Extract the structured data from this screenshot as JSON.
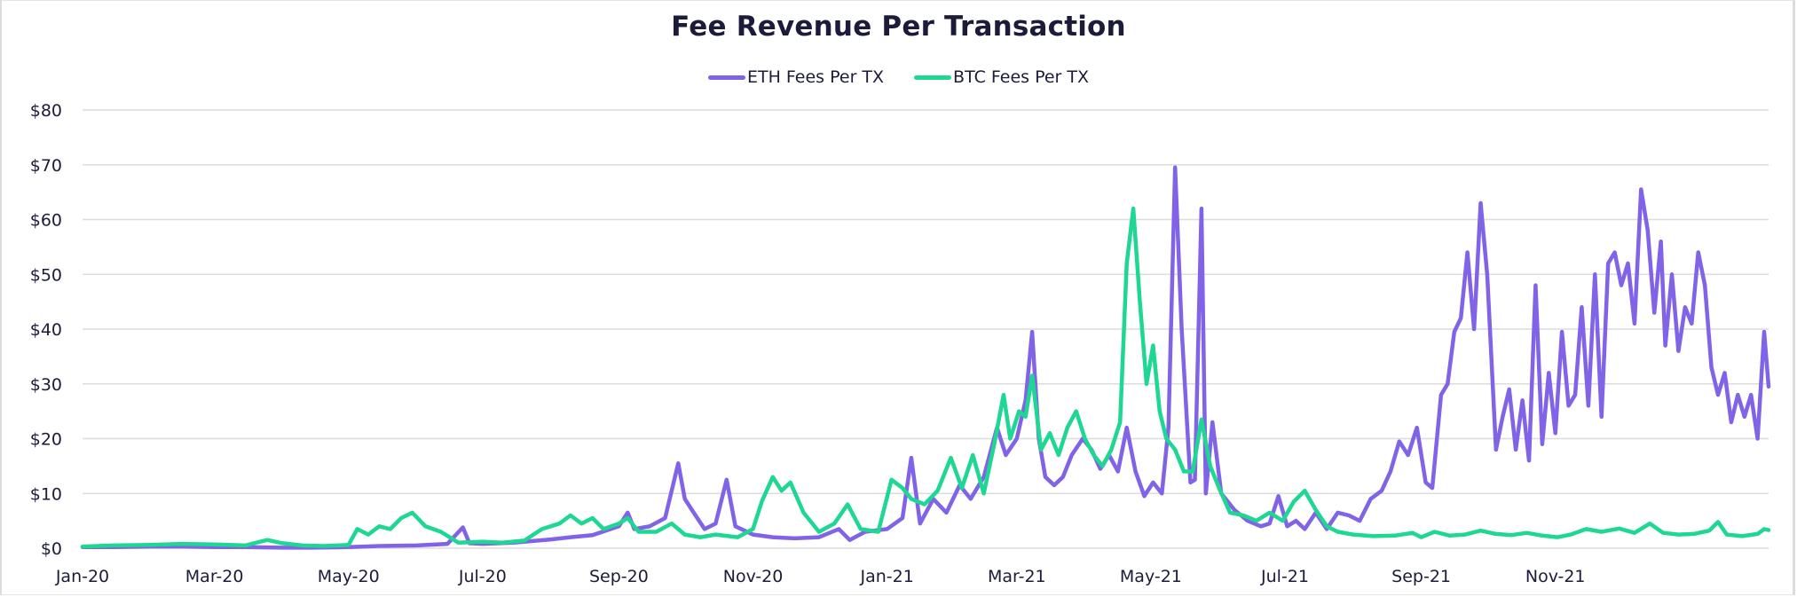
{
  "chart_data": {
    "type": "line",
    "title": "Fee Revenue Per Transaction",
    "xlabel": "",
    "ylabel": "",
    "ylim": [
      0,
      80
    ],
    "y_ticks": [
      0,
      10,
      20,
      30,
      40,
      50,
      60,
      70,
      80
    ],
    "y_tick_labels": [
      "$0",
      "$10",
      "$20",
      "$30",
      "$40",
      "$50",
      "$60",
      "$70",
      "$80"
    ],
    "x_range": [
      "2020-01-01",
      "2021-12-31"
    ],
    "x_ticks": [
      "2020-01-01",
      "2020-03-01",
      "2020-05-01",
      "2020-07-01",
      "2020-09-01",
      "2020-11-01",
      "2021-01-01",
      "2021-03-01",
      "2021-05-01",
      "2021-07-01",
      "2021-09-01",
      "2021-11-01"
    ],
    "x_tick_labels": [
      "Jan-20",
      "Mar-20",
      "May-20",
      "Jul-20",
      "Sep-20",
      "Nov-20",
      "Jan-21",
      "Mar-21",
      "May-21",
      "Jul-21",
      "Sep-21",
      "Nov-21"
    ],
    "grid": true,
    "legend_position": "top-center",
    "series": [
      {
        "name": "ETH Fees Per TX",
        "color": "#8163e8",
        "points": [
          [
            "2020-01-01",
            0.2
          ],
          [
            "2020-01-15",
            0.2
          ],
          [
            "2020-02-01",
            0.3
          ],
          [
            "2020-02-15",
            0.3
          ],
          [
            "2020-03-01",
            0.2
          ],
          [
            "2020-03-15",
            0.2
          ],
          [
            "2020-04-01",
            0.1
          ],
          [
            "2020-04-15",
            0.1
          ],
          [
            "2020-05-01",
            0.2
          ],
          [
            "2020-05-15",
            0.4
          ],
          [
            "2020-06-01",
            0.5
          ],
          [
            "2020-06-15",
            0.8
          ],
          [
            "2020-06-22",
            3.8
          ],
          [
            "2020-06-25",
            0.9
          ],
          [
            "2020-07-01",
            0.8
          ],
          [
            "2020-07-15",
            1.0
          ],
          [
            "2020-08-01",
            1.6
          ],
          [
            "2020-08-10",
            2.0
          ],
          [
            "2020-08-20",
            2.4
          ],
          [
            "2020-09-01",
            4.0
          ],
          [
            "2020-09-05",
            6.5
          ],
          [
            "2020-09-08",
            3.5
          ],
          [
            "2020-09-15",
            4.0
          ],
          [
            "2020-09-22",
            5.5
          ],
          [
            "2020-09-28",
            15.5
          ],
          [
            "2020-10-01",
            9.0
          ],
          [
            "2020-10-05",
            6.5
          ],
          [
            "2020-10-10",
            3.5
          ],
          [
            "2020-10-15",
            4.5
          ],
          [
            "2020-10-20",
            12.5
          ],
          [
            "2020-10-24",
            4.0
          ],
          [
            "2020-11-01",
            2.5
          ],
          [
            "2020-11-10",
            2.0
          ],
          [
            "2020-11-20",
            1.8
          ],
          [
            "2020-12-01",
            2.0
          ],
          [
            "2020-12-10",
            3.5
          ],
          [
            "2020-12-15",
            1.5
          ],
          [
            "2020-12-22",
            3.0
          ],
          [
            "2021-01-01",
            3.5
          ],
          [
            "2021-01-08",
            5.5
          ],
          [
            "2021-01-12",
            16.5
          ],
          [
            "2021-01-16",
            4.5
          ],
          [
            "2021-01-22",
            9.0
          ],
          [
            "2021-01-28",
            6.5
          ],
          [
            "2021-02-03",
            11.5
          ],
          [
            "2021-02-08",
            9.0
          ],
          [
            "2021-02-14",
            13.0
          ],
          [
            "2021-02-20",
            22.0
          ],
          [
            "2021-02-24",
            17.0
          ],
          [
            "2021-03-01",
            20.0
          ],
          [
            "2021-03-05",
            27.0
          ],
          [
            "2021-03-08",
            39.5
          ],
          [
            "2021-03-11",
            20.0
          ],
          [
            "2021-03-14",
            13.0
          ],
          [
            "2021-03-18",
            11.5
          ],
          [
            "2021-03-22",
            13.0
          ],
          [
            "2021-03-26",
            17.0
          ],
          [
            "2021-03-31",
            20.0
          ],
          [
            "2021-04-04",
            18.0
          ],
          [
            "2021-04-08",
            14.5
          ],
          [
            "2021-04-12",
            17.0
          ],
          [
            "2021-04-16",
            14.0
          ],
          [
            "2021-04-20",
            22.0
          ],
          [
            "2021-04-24",
            14.0
          ],
          [
            "2021-04-28",
            9.5
          ],
          [
            "2021-05-02",
            12.0
          ],
          [
            "2021-05-06",
            10.0
          ],
          [
            "2021-05-09",
            22.0
          ],
          [
            "2021-05-12",
            69.5
          ],
          [
            "2021-05-15",
            40.0
          ],
          [
            "2021-05-19",
            12.0
          ],
          [
            "2021-05-21",
            12.5
          ],
          [
            "2021-05-24",
            62.0
          ],
          [
            "2021-05-26",
            10.0
          ],
          [
            "2021-05-29",
            23.0
          ],
          [
            "2021-06-02",
            10.0
          ],
          [
            "2021-06-08",
            7.0
          ],
          [
            "2021-06-14",
            5.0
          ],
          [
            "2021-06-20",
            4.0
          ],
          [
            "2021-06-24",
            4.5
          ],
          [
            "2021-06-28",
            9.5
          ],
          [
            "2021-07-02",
            4.0
          ],
          [
            "2021-07-06",
            5.0
          ],
          [
            "2021-07-10",
            3.5
          ],
          [
            "2021-07-15",
            6.5
          ],
          [
            "2021-07-20",
            3.5
          ],
          [
            "2021-07-25",
            6.5
          ],
          [
            "2021-07-30",
            6.0
          ],
          [
            "2021-08-04",
            5.0
          ],
          [
            "2021-08-09",
            9.0
          ],
          [
            "2021-08-14",
            10.5
          ],
          [
            "2021-08-18",
            14.0
          ],
          [
            "2021-08-22",
            19.5
          ],
          [
            "2021-08-26",
            17.0
          ],
          [
            "2021-08-30",
            22.0
          ],
          [
            "2021-09-03",
            12.0
          ],
          [
            "2021-09-06",
            11.0
          ],
          [
            "2021-09-10",
            28.0
          ],
          [
            "2021-09-13",
            30.0
          ],
          [
            "2021-09-16",
            39.5
          ],
          [
            "2021-09-19",
            42.0
          ],
          [
            "2021-09-22",
            54.0
          ],
          [
            "2021-09-25",
            40.0
          ],
          [
            "2021-09-28",
            63.0
          ],
          [
            "2021-10-01",
            50.0
          ],
          [
            "2021-10-05",
            18.0
          ],
          [
            "2021-10-08",
            24.0
          ],
          [
            "2021-10-11",
            29.0
          ],
          [
            "2021-10-14",
            18.0
          ],
          [
            "2021-10-17",
            27.0
          ],
          [
            "2021-10-20",
            16.0
          ],
          [
            "2021-10-23",
            48.0
          ],
          [
            "2021-10-26",
            19.0
          ],
          [
            "2021-10-29",
            32.0
          ],
          [
            "2021-11-01",
            21.0
          ],
          [
            "2021-11-04",
            39.5
          ],
          [
            "2021-11-07",
            26.0
          ],
          [
            "2021-11-10",
            28.0
          ],
          [
            "2021-11-13",
            44.0
          ],
          [
            "2021-11-16",
            26.0
          ],
          [
            "2021-11-19",
            50.0
          ],
          [
            "2021-11-22",
            24.0
          ],
          [
            "2021-11-25",
            52.0
          ],
          [
            "2021-11-28",
            54.0
          ],
          [
            "2021-12-01",
            48.0
          ],
          [
            "2021-12-04",
            52.0
          ],
          [
            "2021-12-07",
            41.0
          ],
          [
            "2021-12-10",
            65.5
          ],
          [
            "2021-12-13",
            58.0
          ],
          [
            "2021-12-16",
            43.0
          ],
          [
            "2021-12-19",
            56.0
          ],
          [
            "2021-12-21",
            37.0
          ],
          [
            "2021-12-24",
            50.0
          ],
          [
            "2021-12-27",
            36.0
          ],
          [
            "2021-12-30",
            44.0
          ],
          [
            "2022-01-02",
            41.0
          ],
          [
            "2022-01-05",
            54.0
          ],
          [
            "2022-01-08",
            48.0
          ],
          [
            "2022-01-11",
            33.0
          ],
          [
            "2022-01-14",
            28.0
          ],
          [
            "2022-01-17",
            32.0
          ],
          [
            "2022-01-20",
            23.0
          ],
          [
            "2022-01-23",
            28.0
          ],
          [
            "2022-01-26",
            24.0
          ],
          [
            "2022-01-29",
            28.0
          ],
          [
            "2022-02-01",
            20.0
          ],
          [
            "2022-02-04",
            39.5
          ],
          [
            "2022-02-06",
            29.5
          ]
        ]
      },
      {
        "name": "BTC Fees Per TX",
        "color": "#1ed793",
        "points": [
          [
            "2020-01-01",
            0.3
          ],
          [
            "2020-01-15",
            0.5
          ],
          [
            "2020-02-01",
            0.6
          ],
          [
            "2020-02-15",
            0.8
          ],
          [
            "2020-03-01",
            0.7
          ],
          [
            "2020-03-15",
            0.5
          ],
          [
            "2020-03-25",
            1.5
          ],
          [
            "2020-04-01",
            0.9
          ],
          [
            "2020-04-10",
            0.5
          ],
          [
            "2020-04-20",
            0.4
          ],
          [
            "2020-05-01",
            0.6
          ],
          [
            "2020-05-05",
            3.5
          ],
          [
            "2020-05-10",
            2.5
          ],
          [
            "2020-05-15",
            4.0
          ],
          [
            "2020-05-20",
            3.5
          ],
          [
            "2020-05-25",
            5.5
          ],
          [
            "2020-05-30",
            6.5
          ],
          [
            "2020-06-05",
            4.0
          ],
          [
            "2020-06-12",
            3.0
          ],
          [
            "2020-06-20",
            1.0
          ],
          [
            "2020-07-01",
            1.2
          ],
          [
            "2020-07-10",
            1.0
          ],
          [
            "2020-07-20",
            1.4
          ],
          [
            "2020-07-28",
            3.5
          ],
          [
            "2020-08-05",
            4.5
          ],
          [
            "2020-08-10",
            6.0
          ],
          [
            "2020-08-15",
            4.5
          ],
          [
            "2020-08-20",
            5.5
          ],
          [
            "2020-08-25",
            3.5
          ],
          [
            "2020-09-01",
            4.5
          ],
          [
            "2020-09-05",
            5.5
          ],
          [
            "2020-09-10",
            3.0
          ],
          [
            "2020-09-18",
            3.0
          ],
          [
            "2020-09-25",
            4.5
          ],
          [
            "2020-10-01",
            2.5
          ],
          [
            "2020-10-08",
            2.0
          ],
          [
            "2020-10-15",
            2.5
          ],
          [
            "2020-10-25",
            2.0
          ],
          [
            "2020-11-01",
            3.5
          ],
          [
            "2020-11-05",
            8.5
          ],
          [
            "2020-11-10",
            13.0
          ],
          [
            "2020-11-14",
            10.5
          ],
          [
            "2020-11-18",
            12.0
          ],
          [
            "2020-11-24",
            6.5
          ],
          [
            "2020-12-01",
            3.0
          ],
          [
            "2020-12-08",
            4.5
          ],
          [
            "2020-12-14",
            8.0
          ],
          [
            "2020-12-20",
            3.5
          ],
          [
            "2020-12-28",
            3.0
          ],
          [
            "2021-01-03",
            12.5
          ],
          [
            "2021-01-08",
            11.0
          ],
          [
            "2021-01-12",
            9.0
          ],
          [
            "2021-01-18",
            8.0
          ],
          [
            "2021-01-24",
            10.5
          ],
          [
            "2021-01-30",
            16.5
          ],
          [
            "2021-02-04",
            11.0
          ],
          [
            "2021-02-09",
            17.0
          ],
          [
            "2021-02-14",
            10.0
          ],
          [
            "2021-02-19",
            19.5
          ],
          [
            "2021-02-23",
            28.0
          ],
          [
            "2021-02-26",
            20.0
          ],
          [
            "2021-03-02",
            25.0
          ],
          [
            "2021-03-05",
            24.0
          ],
          [
            "2021-03-08",
            31.5
          ],
          [
            "2021-03-12",
            18.0
          ],
          [
            "2021-03-16",
            21.0
          ],
          [
            "2021-03-20",
            17.0
          ],
          [
            "2021-03-24",
            22.0
          ],
          [
            "2021-03-28",
            25.0
          ],
          [
            "2021-04-01",
            20.0
          ],
          [
            "2021-04-05",
            17.0
          ],
          [
            "2021-04-09",
            15.0
          ],
          [
            "2021-04-13",
            18.0
          ],
          [
            "2021-04-17",
            23.0
          ],
          [
            "2021-04-20",
            52.0
          ],
          [
            "2021-04-23",
            62.0
          ],
          [
            "2021-04-26",
            45.0
          ],
          [
            "2021-04-29",
            30.0
          ],
          [
            "2021-05-02",
            37.0
          ],
          [
            "2021-05-05",
            25.0
          ],
          [
            "2021-05-08",
            20.0
          ],
          [
            "2021-05-12",
            18.0
          ],
          [
            "2021-05-16",
            14.0
          ],
          [
            "2021-05-20",
            14.0
          ],
          [
            "2021-05-24",
            23.5
          ],
          [
            "2021-05-28",
            15.0
          ],
          [
            "2021-06-01",
            11.0
          ],
          [
            "2021-06-06",
            6.5
          ],
          [
            "2021-06-12",
            6.0
          ],
          [
            "2021-06-18",
            5.0
          ],
          [
            "2021-06-24",
            6.5
          ],
          [
            "2021-06-30",
            5.0
          ],
          [
            "2021-07-05",
            8.5
          ],
          [
            "2021-07-10",
            10.5
          ],
          [
            "2021-07-15",
            7.0
          ],
          [
            "2021-07-20",
            4.0
          ],
          [
            "2021-07-25",
            3.0
          ],
          [
            "2021-08-01",
            2.5
          ],
          [
            "2021-08-10",
            2.2
          ],
          [
            "2021-08-20",
            2.3
          ],
          [
            "2021-08-28",
            2.8
          ],
          [
            "2021-09-01",
            2.0
          ],
          [
            "2021-09-07",
            3.0
          ],
          [
            "2021-09-14",
            2.3
          ],
          [
            "2021-09-21",
            2.5
          ],
          [
            "2021-09-28",
            3.2
          ],
          [
            "2021-10-05",
            2.6
          ],
          [
            "2021-10-12",
            2.4
          ],
          [
            "2021-10-19",
            2.8
          ],
          [
            "2021-10-26",
            2.3
          ],
          [
            "2021-11-02",
            2.0
          ],
          [
            "2021-11-08",
            2.5
          ],
          [
            "2021-11-15",
            3.5
          ],
          [
            "2021-11-22",
            3.0
          ],
          [
            "2021-11-30",
            3.6
          ],
          [
            "2021-12-07",
            2.8
          ],
          [
            "2021-12-14",
            4.5
          ],
          [
            "2021-12-20",
            2.8
          ],
          [
            "2021-12-27",
            2.5
          ],
          [
            "2022-01-03",
            2.6
          ],
          [
            "2022-01-10",
            3.2
          ],
          [
            "2022-01-14",
            4.8
          ],
          [
            "2022-01-18",
            2.5
          ],
          [
            "2022-01-25",
            2.2
          ],
          [
            "2022-02-01",
            2.6
          ],
          [
            "2022-02-04",
            3.5
          ],
          [
            "2022-02-06",
            3.3
          ]
        ]
      }
    ]
  }
}
